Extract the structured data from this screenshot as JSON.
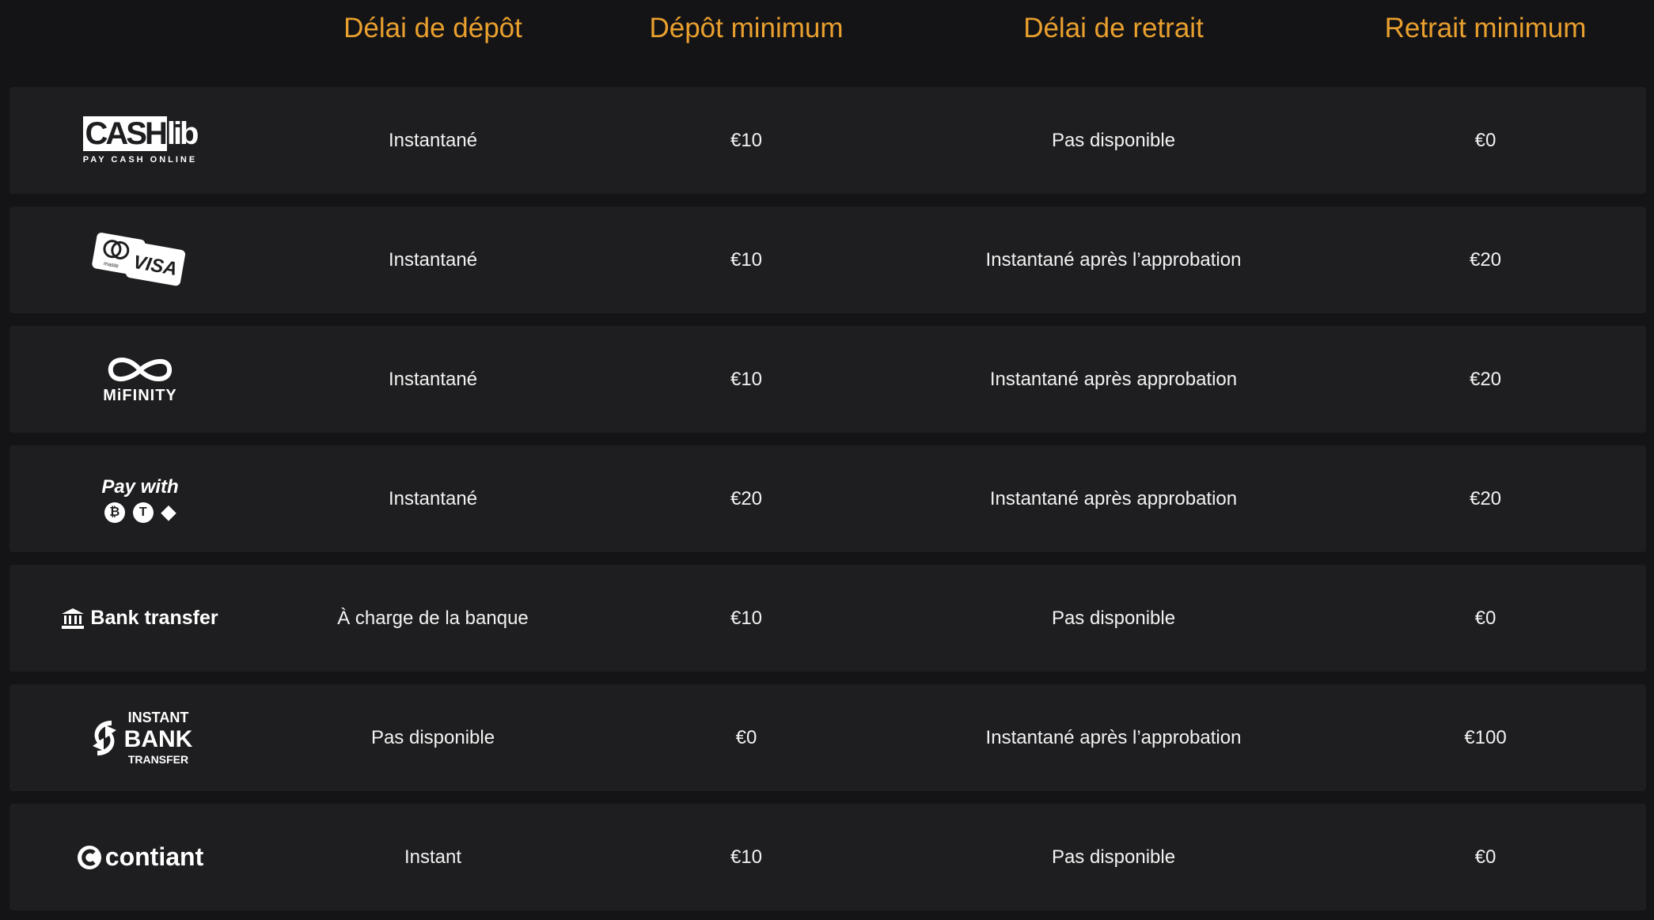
{
  "colors": {
    "accent": "#e9a02e",
    "background": "#141316",
    "row": "#1e1e20"
  },
  "headers": [
    "Délai de dépôt",
    "Dépôt minimum",
    "Délai de retrait",
    "Retrait minimum"
  ],
  "rows": [
    {
      "method": "CASHlib",
      "logo": {
        "top_boxed": "CASH",
        "top_rest": "lib",
        "sub": "PAY CASH ONLINE"
      },
      "deposit_time": "Instantané",
      "deposit_min": "€10",
      "withdraw_time": "Pas disponible",
      "withdraw_min": "€0"
    },
    {
      "method": "Mastercard / Visa",
      "logo": {
        "text": "VISA",
        "small": "maste"
      },
      "deposit_time": "Instantané",
      "deposit_min": "€10",
      "withdraw_time": "Instantané après l’approbation",
      "withdraw_min": "€20"
    },
    {
      "method": "MiFinity",
      "logo": {
        "text": "MiFINITY"
      },
      "deposit_time": "Instantané",
      "deposit_min": "€10",
      "withdraw_time": "Instantané après approbation",
      "withdraw_min": "€20"
    },
    {
      "method": "Pay with crypto",
      "logo": {
        "text": "Pay with",
        "coins": [
          "bitcoin-icon",
          "tether-icon",
          "ethereum-icon"
        ]
      },
      "deposit_time": "Instantané",
      "deposit_min": "€20",
      "withdraw_time": "Instantané après approbation",
      "withdraw_min": "€20"
    },
    {
      "method": "Bank transfer",
      "logo": {
        "text": "Bank transfer",
        "icon": "bank-icon"
      },
      "deposit_time": "À charge de la banque",
      "deposit_min": "€10",
      "withdraw_time": "Pas disponible",
      "withdraw_min": "€0"
    },
    {
      "method": "Instant Bank Transfer",
      "logo": {
        "l1": "INSTANT",
        "l2": "BANK",
        "l3": "TRANSFER"
      },
      "deposit_time": "Pas disponible",
      "deposit_min": "€0",
      "withdraw_time": "Instantané après l’approbation",
      "withdraw_min": "€100"
    },
    {
      "method": "contiant",
      "logo": {
        "text": "contiant"
      },
      "deposit_time": "Instant",
      "deposit_min": "€10",
      "withdraw_time": "Pas disponible",
      "withdraw_min": "€0"
    }
  ]
}
